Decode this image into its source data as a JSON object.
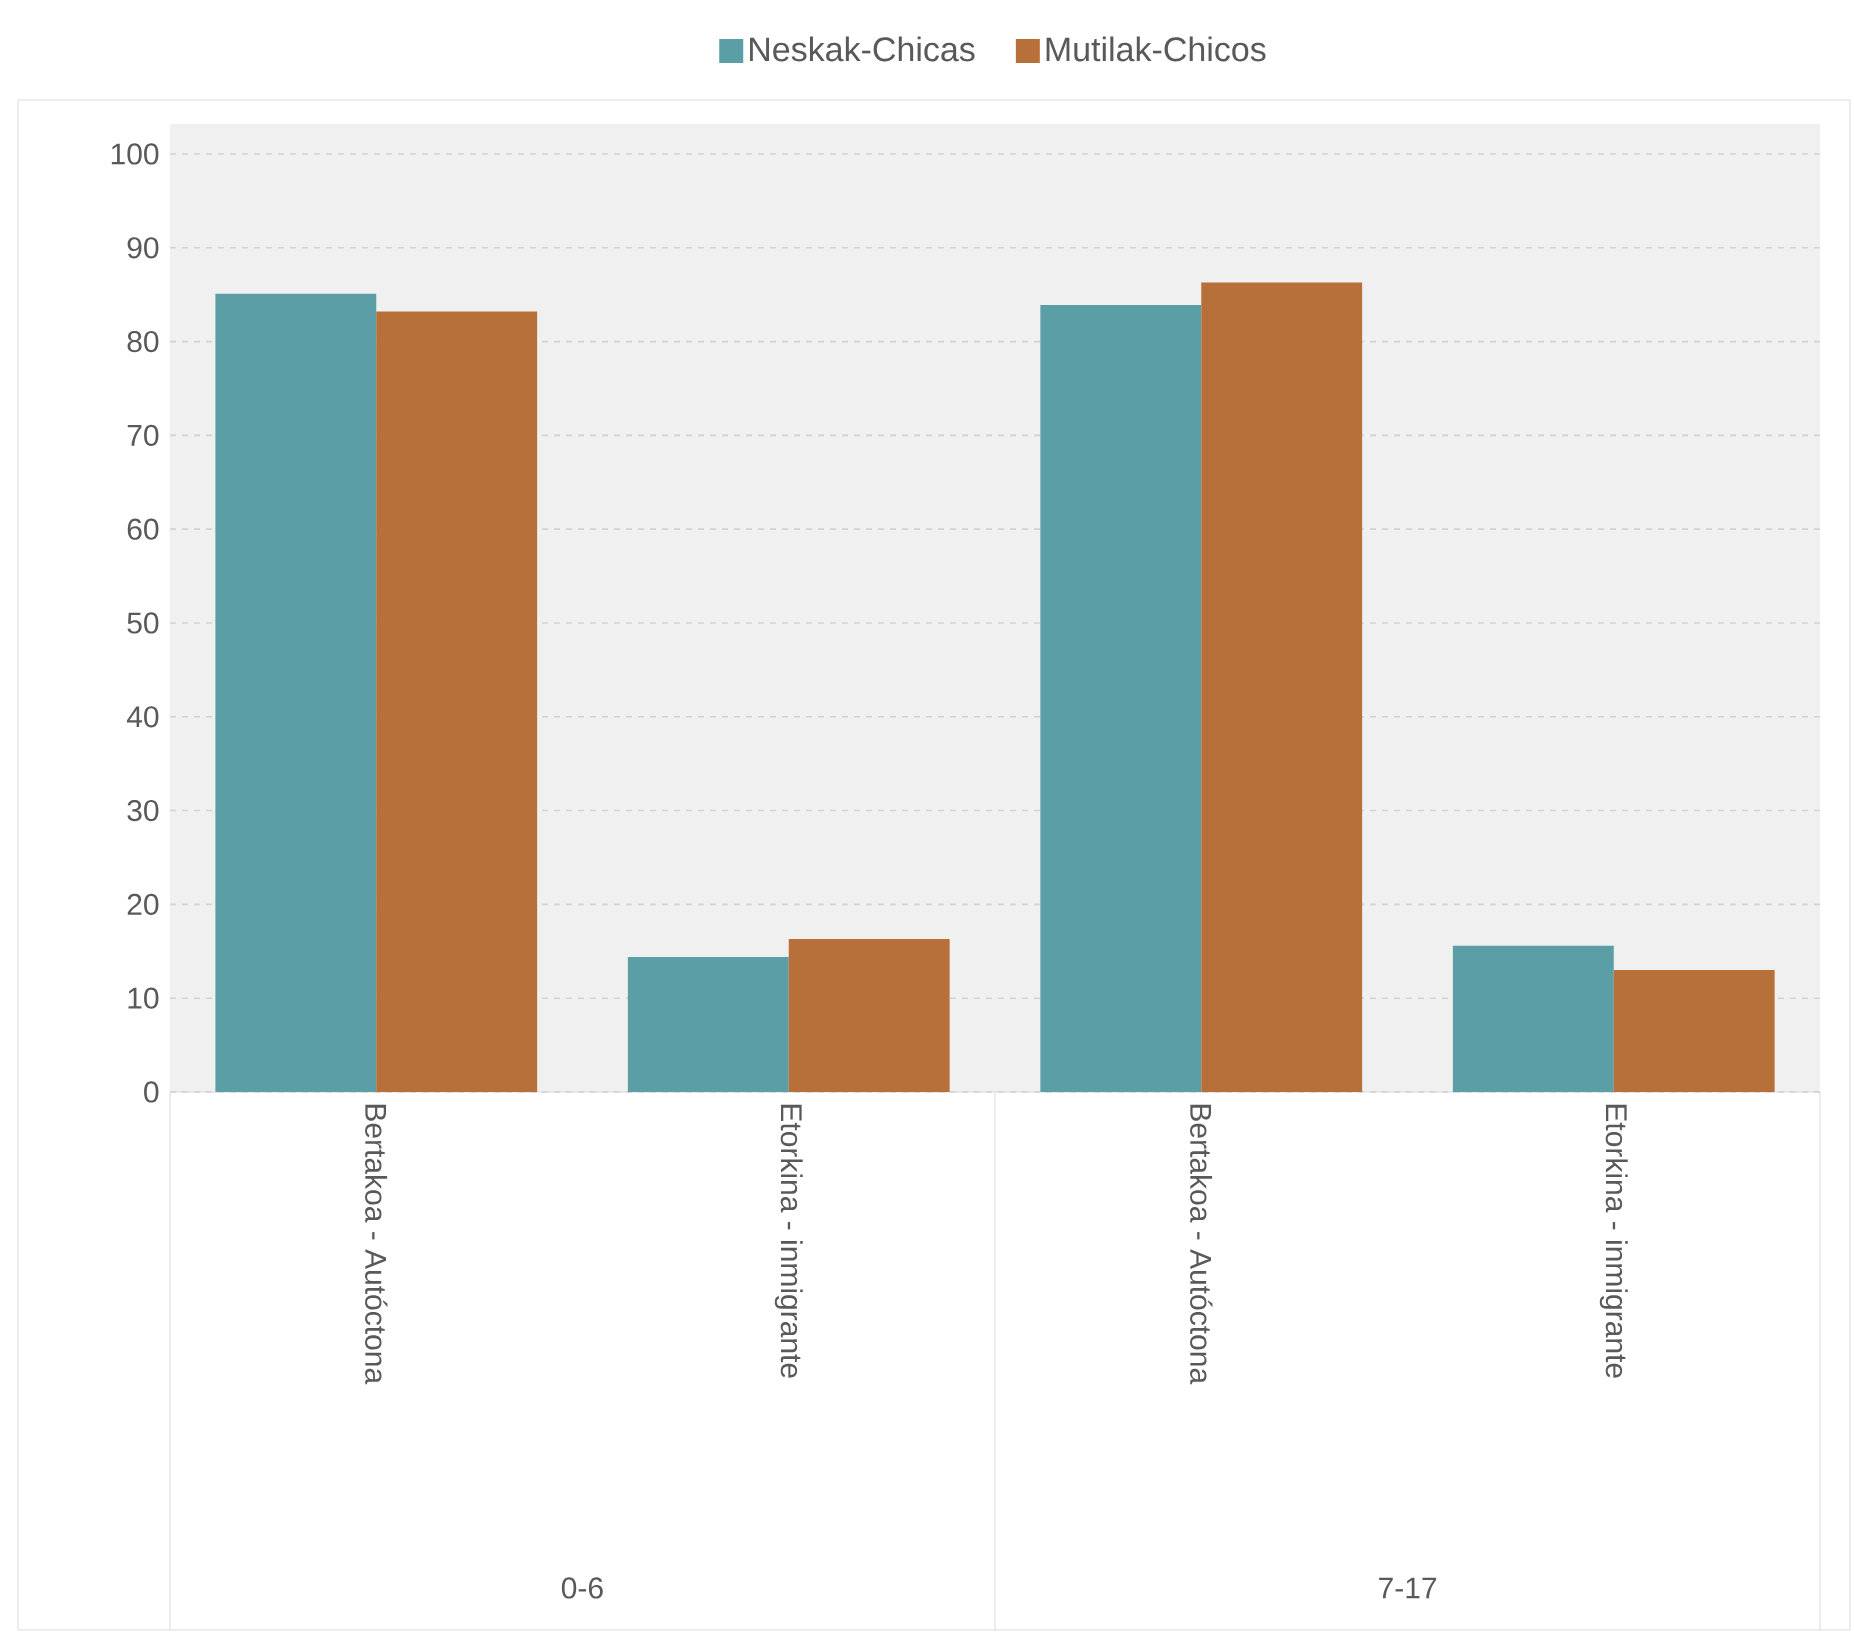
{
  "chart_data": {
    "type": "bar",
    "categories": [
      "Bertakoa - Autóctona",
      "Etorkina - inmigrante",
      "Bertakoa - Autóctona",
      "Etorkina - inmigrante"
    ],
    "series": [
      {
        "name": "Neskak-Chicas",
        "color": "#5b9ea6",
        "values": [
          85.1,
          14.4,
          83.9,
          15.6
        ]
      },
      {
        "name": "Mutilak-Chicos",
        "color": "#b8703a",
        "values": [
          83.2,
          16.3,
          86.3,
          13.0
        ]
      }
    ],
    "annotations": [
      "0-6",
      "7-17"
    ],
    "ylim": [
      0,
      100
    ],
    "yticks": [
      0,
      10,
      20,
      30,
      40,
      50,
      60,
      70,
      80,
      90,
      100
    ],
    "grid": "y",
    "legend": "top"
  }
}
